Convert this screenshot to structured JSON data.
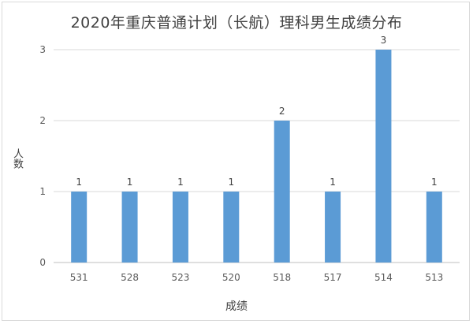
{
  "chart_data": {
    "type": "bar",
    "title": "2020年重庆普通计划（长航）理科男生成绩分布",
    "xlabel": "成绩",
    "ylabel": "人数",
    "categories": [
      "531",
      "528",
      "523",
      "520",
      "518",
      "517",
      "514",
      "513"
    ],
    "values": [
      1,
      1,
      1,
      1,
      2,
      1,
      3,
      1
    ],
    "ylim": [
      0,
      3
    ],
    "yticks": [
      0,
      1,
      2,
      3
    ],
    "grid": true,
    "bar_color": "#5b9bd5",
    "data_labels": true
  }
}
